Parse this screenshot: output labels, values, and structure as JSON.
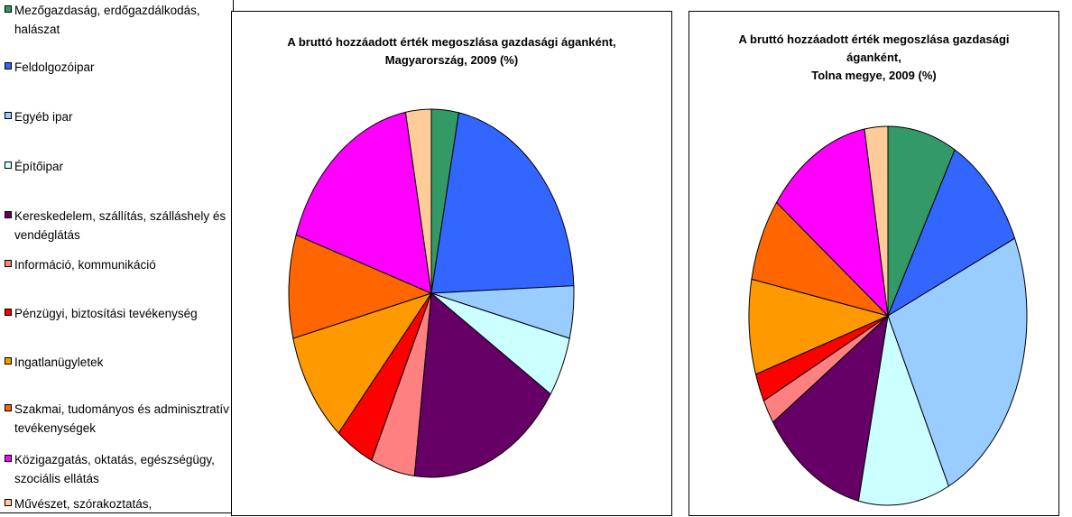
{
  "legend": [
    {
      "label": "Mezőgazdaság, erdőgazdálkodás, halászat",
      "color": "#339966"
    },
    {
      "label": "Feldolgozóipar",
      "color": "#3366FF"
    },
    {
      "label": "Egyéb ipar",
      "color": "#99CCFF"
    },
    {
      "label": "Építőipar",
      "color": "#CCFFFF"
    },
    {
      "label": "Kereskedelem, szállítás, szálláshely és vendéglátás",
      "color": "#660066"
    },
    {
      "label": "Információ, kommunikáció",
      "color": "#FF8080"
    },
    {
      "label": "Pénzügyi, biztosítási tevékenység",
      "color": "#FF0000"
    },
    {
      "label": "Ingatlanügyletek",
      "color": "#FF9900"
    },
    {
      "label": "Szakmai, tudományos és adminisztratív tevékenységek",
      "color": "#FF6600"
    },
    {
      "label": "Közigazgatás, oktatás, egészségügy, szociális ellátás",
      "color": "#FF00FF"
    },
    {
      "label": "Művészet, szórakoztatás,",
      "color": "#FFCC99"
    }
  ],
  "chart_data": [
    {
      "type": "pie",
      "title": "A bruttó hozzáadott érték megoszlása gazdasági áganként, Magyarország, 2009 (%)",
      "title_lines": [
        "A bruttó hozzáadott érték megoszlása gazdasági áganként,",
        "Magyarország, 2009 (%)"
      ],
      "categories": [
        "Mezőgazdaság, erdőgazdálkodás, halászat",
        "Feldolgozóipar",
        "Egyéb ipar",
        "Építőipar",
        "Kereskedelem, szállítás, szálláshely és vendéglátás",
        "Információ, kommunikáció",
        "Pénzügyi, biztosítási tevékenység",
        "Ingatlanügyletek",
        "Szakmai, tudományos és adminisztratív tevékenységek",
        "Közigazgatás, oktatás, egészségügy, szociális ellátás",
        "Művészet, szórakoztatás,"
      ],
      "values": [
        3.1,
        21.3,
        4.6,
        5.3,
        17.7,
        5.0,
        4.4,
        9.8,
        9.1,
        17.0,
        2.9
      ]
    },
    {
      "type": "pie",
      "title": "A bruttó hozzáadott érték megoszlása gazdasági áganként, Tolna megye, 2009 (%)",
      "title_lines": [
        "A bruttó hozzáadott érték megoszlása gazdasági",
        "áganként,",
        "Tolna megye, 2009 (%)"
      ],
      "categories": [
        "Mezőgazdaság, erdőgazdálkodás, halászat",
        "Feldolgozóipar",
        "Egyéb ipar",
        "Építőipar",
        "Kereskedelem, szállítás, szálláshely és vendéglátás",
        "Információ, kommunikáció",
        "Pénzügyi, biztosítási tevékenység",
        "Ingatlanügyletek",
        "Szakmai, tudományos és adminisztratív tevékenységek",
        "Közigazgatás, oktatás, egészségügy, szociális ellátás",
        "Művészet, szórakoztatás,"
      ],
      "values": [
        8.0,
        10.3,
        24.5,
        10.6,
        12.1,
        2.1,
        2.4,
        8.1,
        7.1,
        12.1,
        2.7
      ]
    }
  ]
}
